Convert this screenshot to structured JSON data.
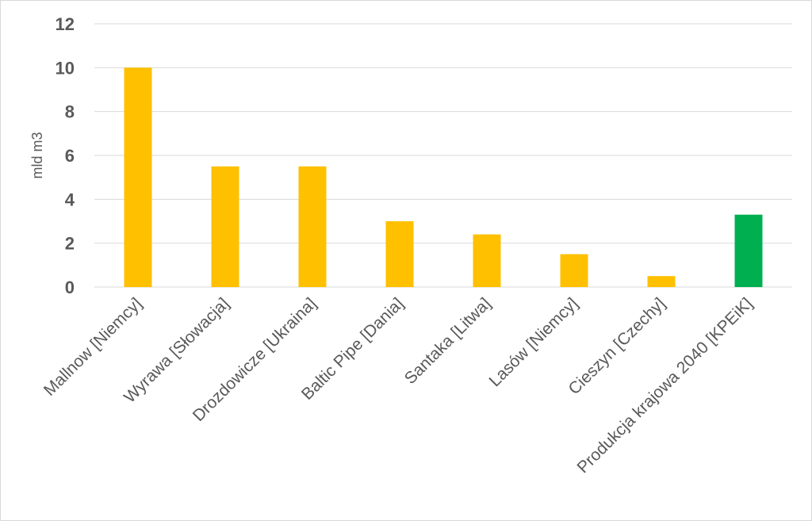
{
  "chart_data": {
    "type": "bar",
    "title": "",
    "xlabel": "",
    "ylabel": "mld m3",
    "ylim": [
      0,
      12
    ],
    "yticks": [
      0,
      2,
      4,
      6,
      8,
      10,
      12
    ],
    "grid": true,
    "legend": "none",
    "categories": [
      "Mallnow [Niemcy]",
      "Wyrawa [Słowacja]",
      "Drozdowicze [Ukraina]",
      "Baltic Pipe [Dania]",
      "Santaka [Litwa]",
      "Lasów [Niemcy]",
      "Cieszyn [Czechy]",
      "Produkcja krajowa 2040 [KPEiK]"
    ],
    "values": [
      10,
      5.5,
      5.5,
      3,
      2.4,
      1.5,
      0.5,
      3.3
    ],
    "bar_colors": [
      "#FFC000",
      "#FFC000",
      "#FFC000",
      "#FFC000",
      "#FFC000",
      "#FFC000",
      "#FFC000",
      "#00B050"
    ],
    "colors": {
      "gridline": "#d9d9d9",
      "axis": "#d9d9d9",
      "text": "#595959"
    }
  }
}
